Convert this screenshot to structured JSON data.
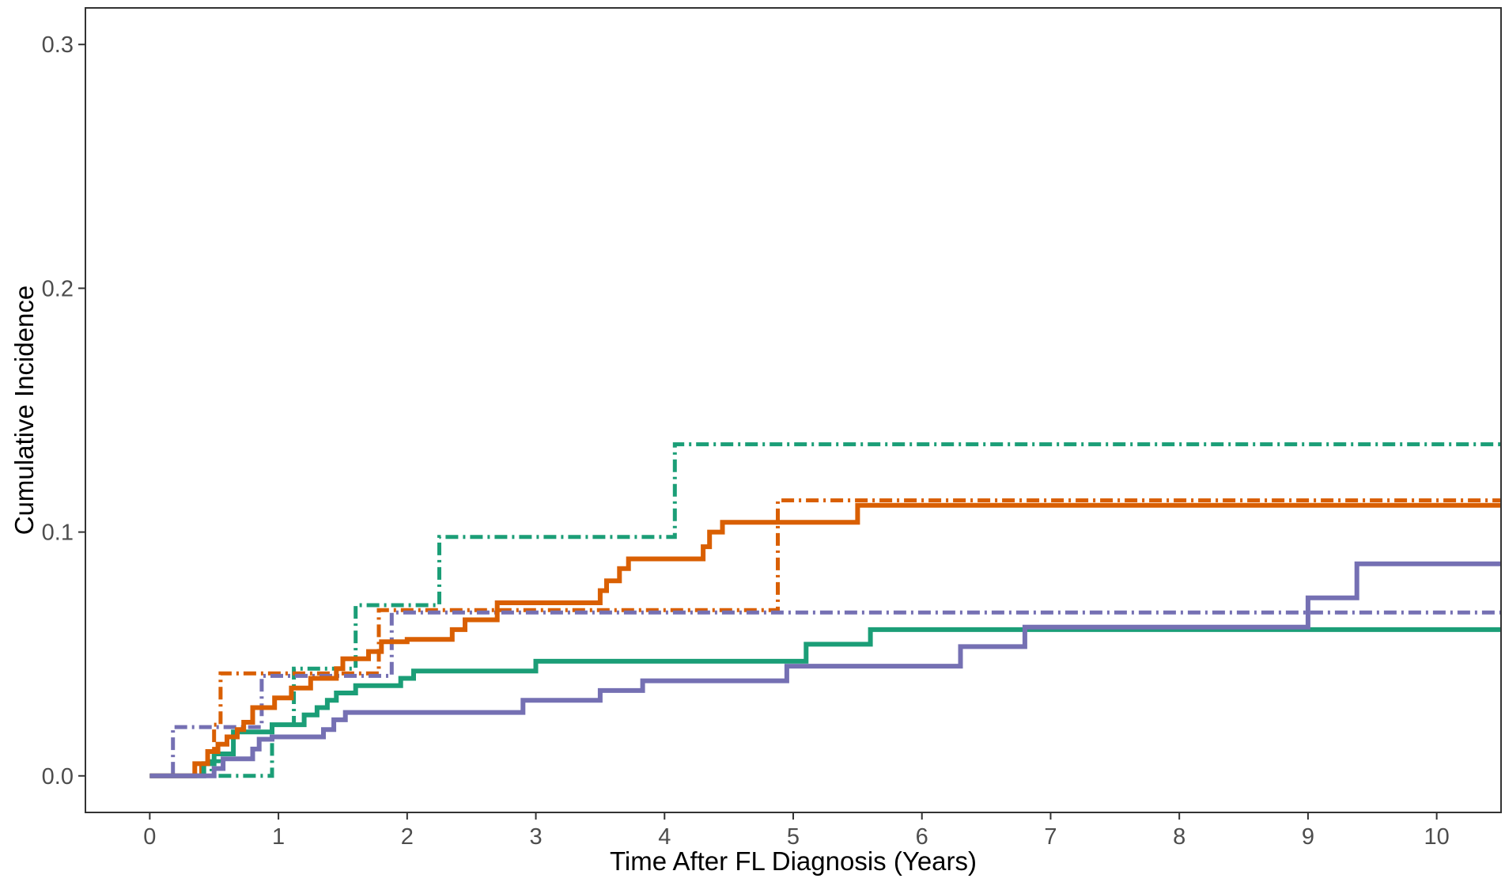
{
  "chart_data": {
    "type": "line",
    "step": true,
    "title": "",
    "xlabel": "Time After FL Diagnosis (Years)",
    "ylabel": "Cumulative Incidence",
    "xlim": [
      -0.5,
      10.5
    ],
    "ylim": [
      -0.015,
      0.315
    ],
    "x_ticks": [
      0,
      1,
      2,
      3,
      4,
      5,
      6,
      7,
      8,
      9,
      10
    ],
    "y_ticks": [
      0.0,
      0.1,
      0.2,
      0.3
    ],
    "y_tick_labels": [
      "0.0",
      "0.1",
      "0.2",
      "0.3"
    ],
    "grid": false,
    "legend": "none",
    "series": [
      {
        "color": "#1b9e77",
        "style": "solid",
        "points": [
          [
            0,
            0
          ],
          [
            0.42,
            0
          ],
          [
            0.42,
            0.005
          ],
          [
            0.5,
            0.005
          ],
          [
            0.5,
            0.009
          ],
          [
            0.65,
            0.009
          ],
          [
            0.65,
            0.018
          ],
          [
            0.95,
            0.018
          ],
          [
            0.95,
            0.021
          ],
          [
            1.2,
            0.021
          ],
          [
            1.2,
            0.025
          ],
          [
            1.3,
            0.025
          ],
          [
            1.3,
            0.028
          ],
          [
            1.38,
            0.028
          ],
          [
            1.38,
            0.031
          ],
          [
            1.45,
            0.031
          ],
          [
            1.45,
            0.034
          ],
          [
            1.6,
            0.034
          ],
          [
            1.6,
            0.037
          ],
          [
            1.95,
            0.037
          ],
          [
            1.95,
            0.04
          ],
          [
            2.05,
            0.04
          ],
          [
            2.05,
            0.043
          ],
          [
            3.0,
            0.043
          ],
          [
            3.0,
            0.047
          ],
          [
            5.1,
            0.047
          ],
          [
            5.1,
            0.054
          ],
          [
            5.6,
            0.054
          ],
          [
            5.6,
            0.06
          ],
          [
            10.5,
            0.06
          ]
        ]
      },
      {
        "color": "#d95f02",
        "style": "solid",
        "points": [
          [
            0,
            0
          ],
          [
            0.35,
            0
          ],
          [
            0.35,
            0.005
          ],
          [
            0.45,
            0.005
          ],
          [
            0.45,
            0.01
          ],
          [
            0.53,
            0.01
          ],
          [
            0.53,
            0.013
          ],
          [
            0.6,
            0.013
          ],
          [
            0.6,
            0.016
          ],
          [
            0.68,
            0.016
          ],
          [
            0.68,
            0.019
          ],
          [
            0.73,
            0.019
          ],
          [
            0.73,
            0.022
          ],
          [
            0.8,
            0.022
          ],
          [
            0.8,
            0.028
          ],
          [
            0.97,
            0.028
          ],
          [
            0.97,
            0.032
          ],
          [
            1.1,
            0.032
          ],
          [
            1.1,
            0.036
          ],
          [
            1.25,
            0.036
          ],
          [
            1.25,
            0.04
          ],
          [
            1.45,
            0.04
          ],
          [
            1.45,
            0.044
          ],
          [
            1.5,
            0.044
          ],
          [
            1.5,
            0.048
          ],
          [
            1.7,
            0.048
          ],
          [
            1.7,
            0.051
          ],
          [
            1.8,
            0.051
          ],
          [
            1.8,
            0.055
          ],
          [
            2.0,
            0.055
          ],
          [
            2.0,
            0.056
          ],
          [
            2.35,
            0.056
          ],
          [
            2.35,
            0.06
          ],
          [
            2.45,
            0.06
          ],
          [
            2.45,
            0.064
          ],
          [
            2.7,
            0.064
          ],
          [
            2.7,
            0.071
          ],
          [
            3.5,
            0.071
          ],
          [
            3.5,
            0.076
          ],
          [
            3.55,
            0.076
          ],
          [
            3.55,
            0.08
          ],
          [
            3.65,
            0.08
          ],
          [
            3.65,
            0.085
          ],
          [
            3.72,
            0.085
          ],
          [
            3.72,
            0.089
          ],
          [
            4.3,
            0.089
          ],
          [
            4.3,
            0.094
          ],
          [
            4.35,
            0.094
          ],
          [
            4.35,
            0.1
          ],
          [
            4.45,
            0.1
          ],
          [
            4.45,
            0.104
          ],
          [
            5.5,
            0.104
          ],
          [
            5.5,
            0.111
          ],
          [
            10.5,
            0.111
          ]
        ]
      },
      {
        "color": "#7570b3",
        "style": "solid",
        "points": [
          [
            0,
            0
          ],
          [
            0.5,
            0
          ],
          [
            0.5,
            0.003
          ],
          [
            0.57,
            0.003
          ],
          [
            0.57,
            0.007
          ],
          [
            0.8,
            0.007
          ],
          [
            0.8,
            0.011
          ],
          [
            0.85,
            0.011
          ],
          [
            0.85,
            0.015
          ],
          [
            0.95,
            0.015
          ],
          [
            0.95,
            0.016
          ],
          [
            1.35,
            0.016
          ],
          [
            1.35,
            0.019
          ],
          [
            1.43,
            0.019
          ],
          [
            1.43,
            0.023
          ],
          [
            1.52,
            0.023
          ],
          [
            1.52,
            0.026
          ],
          [
            2.9,
            0.026
          ],
          [
            2.9,
            0.031
          ],
          [
            3.5,
            0.031
          ],
          [
            3.5,
            0.035
          ],
          [
            3.83,
            0.035
          ],
          [
            3.83,
            0.039
          ],
          [
            4.95,
            0.039
          ],
          [
            4.95,
            0.045
          ],
          [
            6.3,
            0.045
          ],
          [
            6.3,
            0.053
          ],
          [
            6.8,
            0.053
          ],
          [
            6.8,
            0.061
          ],
          [
            9.0,
            0.061
          ],
          [
            9.0,
            0.073
          ],
          [
            9.38,
            0.073
          ],
          [
            9.38,
            0.087
          ],
          [
            10.5,
            0.087
          ]
        ]
      },
      {
        "color": "#1b9e77",
        "style": "dashdot",
        "points": [
          [
            0,
            0
          ],
          [
            0.48,
            0
          ],
          [
            0.48,
            0.006
          ],
          [
            0.55,
            0.006
          ],
          [
            0.55,
            0.0
          ],
          [
            0.95,
            0.0
          ],
          [
            0.95,
            0.021
          ],
          [
            1.12,
            0.021
          ],
          [
            1.12,
            0.044
          ],
          [
            1.6,
            0.044
          ],
          [
            1.6,
            0.07
          ],
          [
            2.25,
            0.07
          ],
          [
            2.25,
            0.098
          ],
          [
            4.08,
            0.098
          ],
          [
            4.08,
            0.136
          ],
          [
            10.5,
            0.136
          ]
        ]
      },
      {
        "color": "#d95f02",
        "style": "dashdot",
        "points": [
          [
            0,
            0
          ],
          [
            0.4,
            0
          ],
          [
            0.4,
            0.005
          ],
          [
            0.5,
            0.005
          ],
          [
            0.5,
            0.021
          ],
          [
            0.55,
            0.021
          ],
          [
            0.55,
            0.042
          ],
          [
            1.78,
            0.042
          ],
          [
            1.78,
            0.068
          ],
          [
            4.88,
            0.068
          ],
          [
            4.88,
            0.113
          ],
          [
            10.5,
            0.113
          ]
        ]
      },
      {
        "color": "#7570b3",
        "style": "dashdot",
        "points": [
          [
            0,
            0
          ],
          [
            0.18,
            0
          ],
          [
            0.18,
            0.02
          ],
          [
            0.87,
            0.02
          ],
          [
            0.87,
            0.041
          ],
          [
            1.88,
            0.041
          ],
          [
            1.88,
            0.067
          ],
          [
            10.5,
            0.067
          ]
        ]
      }
    ]
  }
}
